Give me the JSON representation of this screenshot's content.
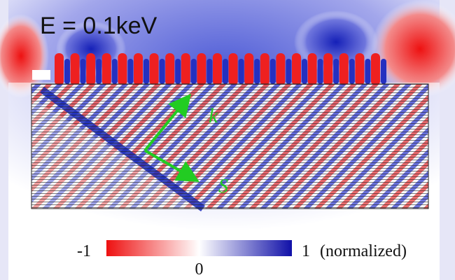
{
  "title": "E = 0.1keV",
  "vectors": {
    "k": "k",
    "s": "S"
  },
  "colorbar": {
    "lim": [
      -1,
      1
    ],
    "ticks": [
      -1,
      0,
      1
    ],
    "label": "(normalized)"
  }
}
